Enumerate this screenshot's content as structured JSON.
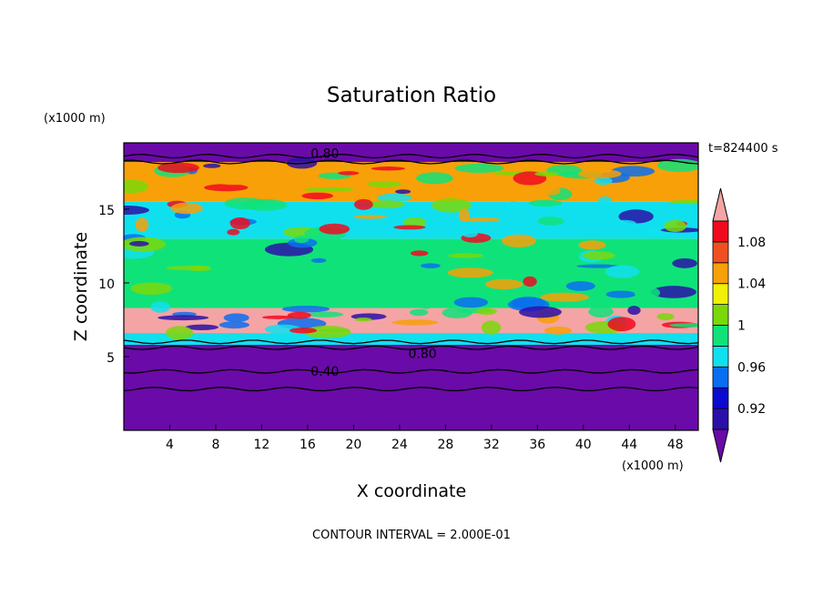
{
  "chart_data": {
    "type": "heatmap",
    "title": "Saturation Ratio",
    "xlabel": "X coordinate",
    "ylabel": "Z coordinate",
    "x_units": "(x1000 m)",
    "z_units": "(x1000 m)",
    "time_label": "t=824400 s",
    "footer": "CONTOUR INTERVAL = 2.000E-01",
    "xlim": [
      0,
      50
    ],
    "zlim": [
      0,
      19.5
    ],
    "x_ticks": [
      "4",
      "8",
      "12",
      "16",
      "20",
      "24",
      "28",
      "32",
      "36",
      "40",
      "44",
      "48"
    ],
    "z_ticks": [
      "5",
      "10",
      "15"
    ],
    "contour_labels": [
      {
        "text": "0.80",
        "x": 17.5,
        "z": 18.8
      },
      {
        "text": "0.80",
        "x": 26.0,
        "z": 5.2
      },
      {
        "text": "0.40",
        "x": 17.5,
        "z": 4.0
      }
    ],
    "colorbar": {
      "labels": [
        "1.08",
        "1.04",
        "1",
        "0.96",
        "0.92"
      ],
      "levels": [
        0.9,
        0.92,
        0.94,
        0.96,
        0.98,
        1.0,
        1.02,
        1.04,
        1.06,
        1.08,
        1.1
      ],
      "colors": [
        "#6a0aa8",
        "#2a10a8",
        "#0a0ad0",
        "#0a6ef0",
        "#10e0ee",
        "#10e27a",
        "#7ad80a",
        "#f0f008",
        "#f8a008",
        "#f05020",
        "#f00a1e",
        "#f4a4a4"
      ]
    },
    "layers": [
      {
        "z": [
          0,
          5.8
        ],
        "value": 0.6,
        "description_free": true
      },
      {
        "z": [
          5.8,
          6.6
        ],
        "value": 0.96
      },
      {
        "z": [
          6.6,
          8.3
        ],
        "value": 1.1
      },
      {
        "z": [
          8.3,
          13.0
        ],
        "value": 0.99
      },
      {
        "z": [
          13.0,
          15.5
        ],
        "value": 0.96
      },
      {
        "z": [
          15.5,
          18.2
        ],
        "value": 1.05
      },
      {
        "z": [
          18.2,
          19.5
        ],
        "value": 0.8
      }
    ]
  }
}
